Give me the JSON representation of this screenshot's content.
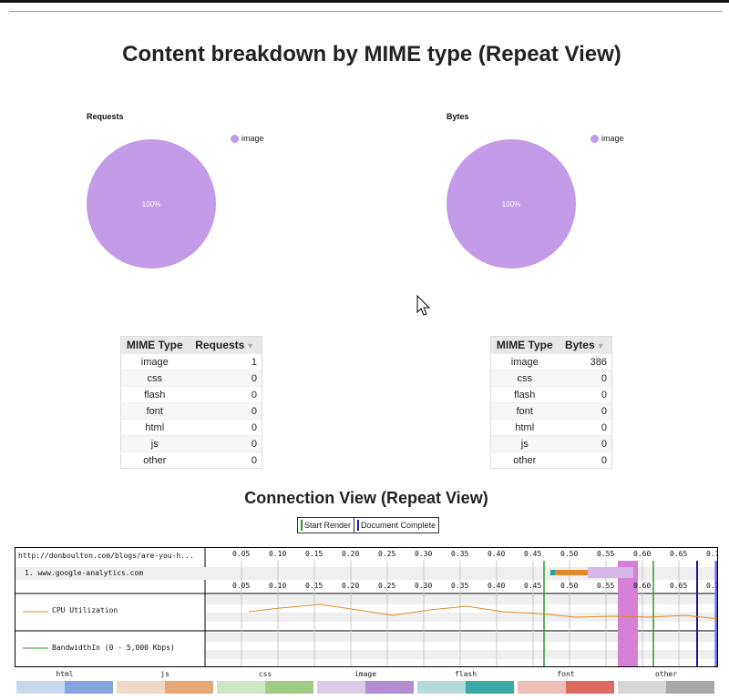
{
  "page": {
    "title": "Content breakdown by MIME type (Repeat View)",
    "connection_title": "Connection View (Repeat View)"
  },
  "charts": {
    "requests": {
      "title": "Requests",
      "legend": "image",
      "slice_label": "100%"
    },
    "bytes": {
      "title": "Bytes",
      "legend": "image",
      "slice_label": "100%"
    }
  },
  "chart_data": [
    {
      "type": "pie",
      "title": "Requests",
      "labels": [
        "image"
      ],
      "values": [
        100
      ],
      "colors": [
        "#c39be8"
      ]
    },
    {
      "type": "pie",
      "title": "Bytes",
      "labels": [
        "image"
      ],
      "values": [
        100
      ],
      "colors": [
        "#c39be8"
      ]
    }
  ],
  "requests_table": {
    "headers": [
      "MIME Type",
      "Requests"
    ],
    "rows": [
      [
        "image",
        "1"
      ],
      [
        "css",
        "0"
      ],
      [
        "flash",
        "0"
      ],
      [
        "font",
        "0"
      ],
      [
        "html",
        "0"
      ],
      [
        "js",
        "0"
      ],
      [
        "other",
        "0"
      ]
    ]
  },
  "bytes_table": {
    "headers": [
      "MIME Type",
      "Bytes"
    ],
    "rows": [
      [
        "image",
        "386"
      ],
      [
        "css",
        "0"
      ],
      [
        "flash",
        "0"
      ],
      [
        "font",
        "0"
      ],
      [
        "html",
        "0"
      ],
      [
        "js",
        "0"
      ],
      [
        "other",
        "0"
      ]
    ]
  },
  "legend_buttons": {
    "start_render": "Start Render",
    "document_complete": "Document Complete",
    "start_render_color": "#2a9a2a",
    "document_complete_color": "#1a1aa0"
  },
  "waterfall": {
    "url": "http://donboulton.com/blogs/are-you-h...",
    "request_1": "1. www.google-analytics.com",
    "cpu_label": "CPU Utilization",
    "bandwidth_label": "BandwidthIn (0 - 5,000 Kbps)",
    "ticks": [
      "0.05",
      "0.10",
      "0.15",
      "0.20",
      "0.25",
      "0.30",
      "0.35",
      "0.40",
      "0.45",
      "0.50",
      "0.55",
      "0.60",
      "0.65",
      "0.7"
    ]
  },
  "mime_types": [
    {
      "name": "html",
      "light": "#c8d6ee",
      "dark": "#82a6dc"
    },
    {
      "name": "js",
      "light": "#f1d8c4",
      "dark": "#e4a878"
    },
    {
      "name": "css",
      "light": "#cfe6c3",
      "dark": "#9ecc86"
    },
    {
      "name": "image",
      "light": "#dccbe6",
      "dark": "#b48ad0"
    },
    {
      "name": "flash",
      "light": "#b4dada",
      "dark": "#3aa8a8"
    },
    {
      "name": "font",
      "light": "#eebeb8",
      "dark": "#dc6a5e"
    },
    {
      "name": "other",
      "light": "#d6d6d6",
      "dark": "#a8a8a8"
    }
  ]
}
